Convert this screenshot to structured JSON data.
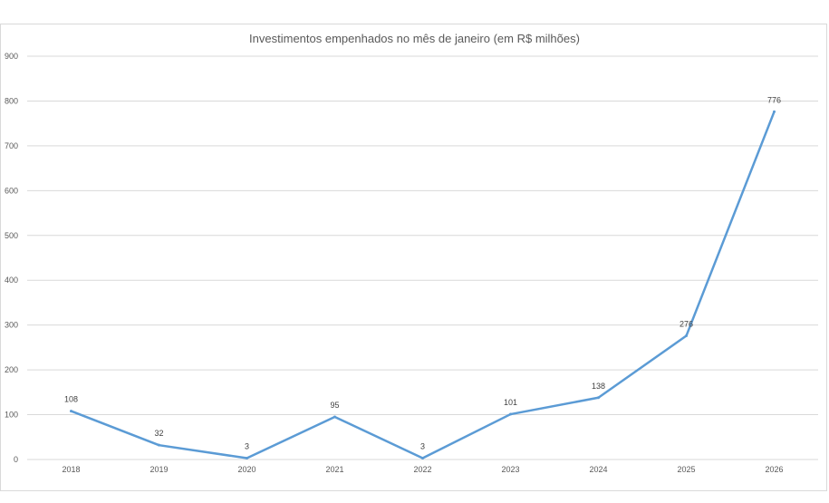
{
  "chart_data": {
    "type": "line",
    "title": "Investimentos empenhados no mês de janeiro (em R$ milhões)",
    "xlabel": "",
    "ylabel": "",
    "categories": [
      "2018",
      "2019",
      "2020",
      "2021",
      "2022",
      "2023",
      "2024",
      "2025",
      "2026"
    ],
    "series": [
      {
        "values": [
          108,
          32,
          3,
          95,
          3,
          101,
          138,
          276,
          776
        ],
        "color": "#5b9bd5"
      }
    ],
    "data_labels": [
      "108",
      "32",
      "3",
      "95",
      "3",
      "101",
      "138",
      "276",
      "776"
    ],
    "yticks": [
      "0",
      "100",
      "200",
      "300",
      "400",
      "500",
      "600",
      "700",
      "800",
      "900"
    ],
    "ylim": [
      0,
      900
    ],
    "grid": true,
    "legend": "none"
  }
}
